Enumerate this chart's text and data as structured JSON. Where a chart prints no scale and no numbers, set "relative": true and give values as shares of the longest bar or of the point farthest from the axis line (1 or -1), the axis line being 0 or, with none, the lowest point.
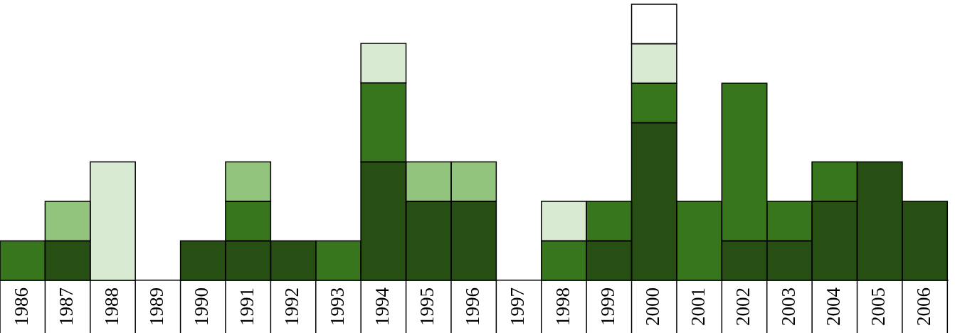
{
  "chart_data": {
    "type": "bar",
    "stacked": true,
    "relative": true,
    "grid": false,
    "legend": false,
    "categories": [
      "1986",
      "1987",
      "1988",
      "1989",
      "1990",
      "1991",
      "1992",
      "1993",
      "1994",
      "1995",
      "1996",
      "1997",
      "1998",
      "1999",
      "2000",
      "2001",
      "2002",
      "2003",
      "2004",
      "2005",
      "2006"
    ],
    "series": [
      {
        "color": "#274e13",
        "values": [
          null,
          0.143,
          null,
          null,
          0.143,
          0.143,
          0.143,
          null,
          0.429,
          0.286,
          0.286,
          null,
          null,
          0.143,
          0.571,
          null,
          0.143,
          0.143,
          0.286,
          0.429,
          0.286
        ]
      },
      {
        "color": "#38761d",
        "values": [
          0.143,
          null,
          null,
          null,
          null,
          0.143,
          null,
          0.143,
          0.286,
          null,
          null,
          null,
          0.143,
          0.143,
          0.143,
          0.286,
          0.571,
          0.143,
          0.143,
          null,
          null
        ]
      },
      {
        "color": "#93c47d",
        "values": [
          null,
          0.143,
          null,
          null,
          null,
          0.143,
          null,
          null,
          null,
          0.143,
          0.143,
          null,
          null,
          null,
          null,
          null,
          null,
          null,
          null,
          null,
          null
        ]
      },
      {
        "color": "#d9ead3",
        "values": [
          null,
          null,
          0.429,
          null,
          null,
          null,
          null,
          null,
          0.143,
          null,
          null,
          null,
          0.143,
          null,
          0.143,
          null,
          null,
          null,
          null,
          null,
          null
        ]
      },
      {
        "color": "#ffffff",
        "values": [
          null,
          null,
          null,
          null,
          null,
          null,
          null,
          null,
          null,
          null,
          null,
          null,
          null,
          null,
          0.143,
          null,
          null,
          null,
          null,
          null,
          null
        ]
      }
    ]
  }
}
